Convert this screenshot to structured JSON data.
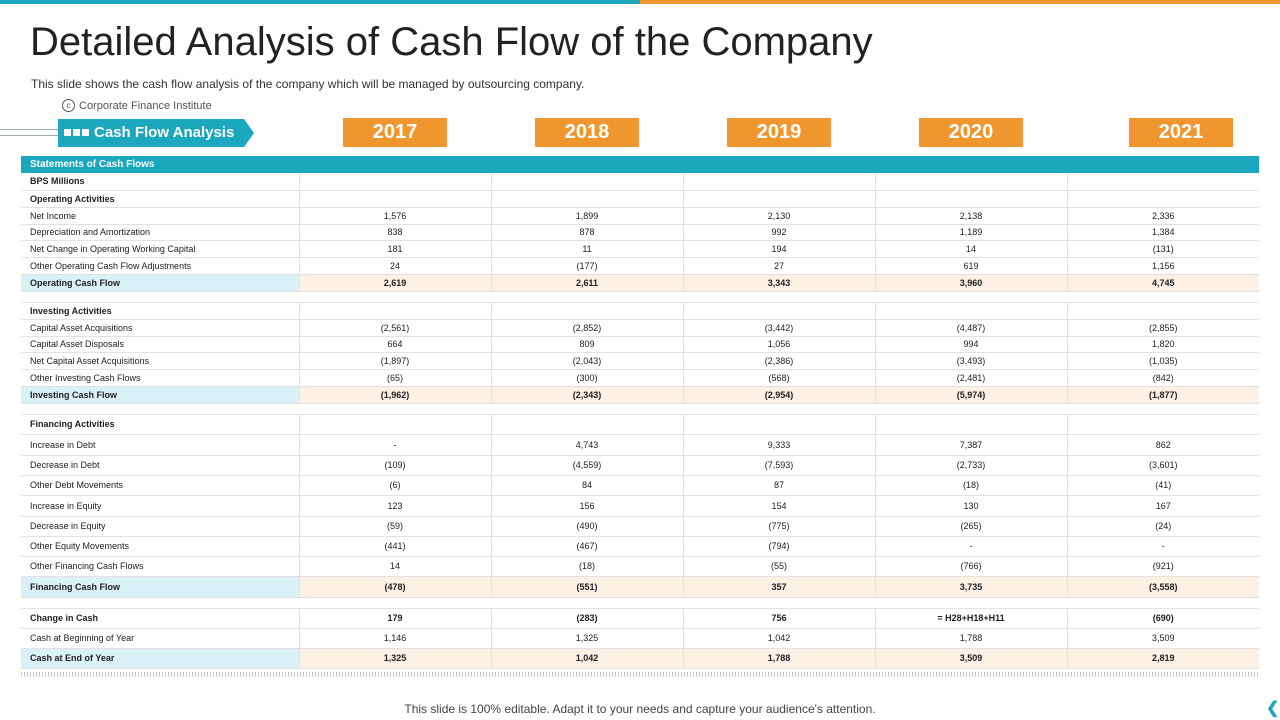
{
  "title": "Detailed Analysis of Cash Flow of the Company",
  "subtitle": "This slide shows the cash flow analysis of the company which will be managed by outsourcing company.",
  "source": "Corporate Finance Institute",
  "tag_label": "Cash Flow Analysis",
  "years": [
    "2017",
    "2018",
    "2019",
    "2020",
    "2021"
  ],
  "table_header": "Statements of Cash Flows",
  "rows": [
    {
      "label": "BPS Millions",
      "values": [
        "",
        "",
        "",
        "",
        ""
      ],
      "style": "bold",
      "h": 17
    },
    {
      "label": "Operating Activities",
      "values": [
        "",
        "",
        "",
        "",
        ""
      ],
      "style": "bold",
      "h": 17
    },
    {
      "label": "Net Income",
      "values": [
        "1,576",
        "1,899",
        "2,130",
        "2,138",
        "2,336"
      ],
      "style": "",
      "h": 17
    },
    {
      "label": "Depreciation and Amortization",
      "values": [
        "838",
        "878",
        "992",
        "1,189",
        "1,384"
      ],
      "style": "",
      "h": 16
    },
    {
      "label": "Net Change in Operating Working Capital",
      "values": [
        "181",
        "11",
        "194",
        "14",
        "(131)"
      ],
      "style": "",
      "h": 17
    },
    {
      "label": "Other Operating Cash Flow Adjustments",
      "values": [
        "24",
        "(177)",
        "27",
        "619",
        "1,156"
      ],
      "style": "",
      "h": 17
    },
    {
      "label": "Operating Cash Flow",
      "values": [
        "2,619",
        "2,611",
        "3,343",
        "3,960",
        "4,745"
      ],
      "style": "total",
      "h": 17
    },
    {
      "label": "",
      "values": [],
      "style": "spacer",
      "h": 11
    },
    {
      "label": "Investing Activities",
      "values": [
        "",
        "",
        "",
        "",
        ""
      ],
      "style": "bold",
      "h": 17
    },
    {
      "label": "Capital Asset Acquisitions",
      "values": [
        "(2,561)",
        "(2,852)",
        "(3,442)",
        "(4,487)",
        "(2,855)"
      ],
      "style": "",
      "h": 17
    },
    {
      "label": "Capital Asset Disposals",
      "values": [
        "664",
        "809",
        "1,056",
        "994",
        "1,820"
      ],
      "style": "",
      "h": 16
    },
    {
      "label": "Net Capital Asset Acquisitions",
      "values": [
        "(1,897)",
        "(2,043)",
        "(2,386)",
        "(3,493)",
        "(1,035)"
      ],
      "style": "",
      "h": 17
    },
    {
      "label": "Other Investing Cash Flows",
      "values": [
        "(65)",
        "(300)",
        "(568)",
        "(2,481)",
        "(842)"
      ],
      "style": "",
      "h": 17
    },
    {
      "label": "Investing Cash Flow",
      "values": [
        "(1,962)",
        "(2,343)",
        "(2,954)",
        "(5,974)",
        "(1,877)"
      ],
      "style": "total",
      "h": 17
    },
    {
      "label": "",
      "values": [],
      "style": "spacer",
      "h": 11
    },
    {
      "label": "Financing  Activities",
      "values": [
        "",
        "",
        "",
        "",
        ""
      ],
      "style": "bold",
      "h": 20
    },
    {
      "label": "Increase in Debt",
      "values": [
        "-",
        "4,743",
        "9,333",
        "7,387",
        "862"
      ],
      "style": "",
      "h": 21
    },
    {
      "label": "Decrease in Debt",
      "values": [
        "(109)",
        "(4,559)",
        "(7,593)",
        "(2,733)",
        "(3,601)"
      ],
      "style": "",
      "h": 20
    },
    {
      "label": "Other Debt Movements",
      "values": [
        "(6)",
        "84",
        "87",
        "(18)",
        "(41)"
      ],
      "style": "",
      "h": 20
    },
    {
      "label": "Increase in Equity",
      "values": [
        "123",
        "156",
        "154",
        "130",
        "167"
      ],
      "style": "",
      "h": 21
    },
    {
      "label": "Decrease in Equity",
      "values": [
        "(59)",
        "(490)",
        "(775)",
        "(265)",
        "(24)"
      ],
      "style": "",
      "h": 20
    },
    {
      "label": "Other Equity Movements",
      "values": [
        "(441)",
        "(467)",
        "(794)",
        "-",
        "-"
      ],
      "style": "",
      "h": 20
    },
    {
      "label": "Other Financing Cash Flows",
      "values": [
        "14",
        "(18)",
        "(55)",
        "(766)",
        "(921)"
      ],
      "style": "",
      "h": 20
    },
    {
      "label": "Financing  Cash Flow",
      "values": [
        "(478)",
        "(551)",
        "357",
        "3,735",
        "(3,558)"
      ],
      "style": "total",
      "h": 21
    },
    {
      "label": "",
      "values": [],
      "style": "spacer",
      "h": 11
    },
    {
      "label": "Change  in Cash",
      "values": [
        "179",
        "(283)",
        "756",
        "=  H28+H18+H11",
        "(690)"
      ],
      "style": "bold",
      "h": 20
    },
    {
      "label": "Cash at Beginning of Year",
      "values": [
        "1,146",
        "1,325",
        "1,042",
        "1,788",
        "3,509"
      ],
      "style": "",
      "h": 20
    },
    {
      "label": "Cash  at End of Year",
      "values": [
        "1,325",
        "1,042",
        "1,788",
        "3,509",
        "2,819"
      ],
      "style": "total",
      "h": 20
    }
  ],
  "footer": "This slide is 100% editable. Adapt it to your needs and capture your audience's attention.",
  "colors": {
    "teal": "#1ba7bd",
    "orange": "#f0962e"
  }
}
